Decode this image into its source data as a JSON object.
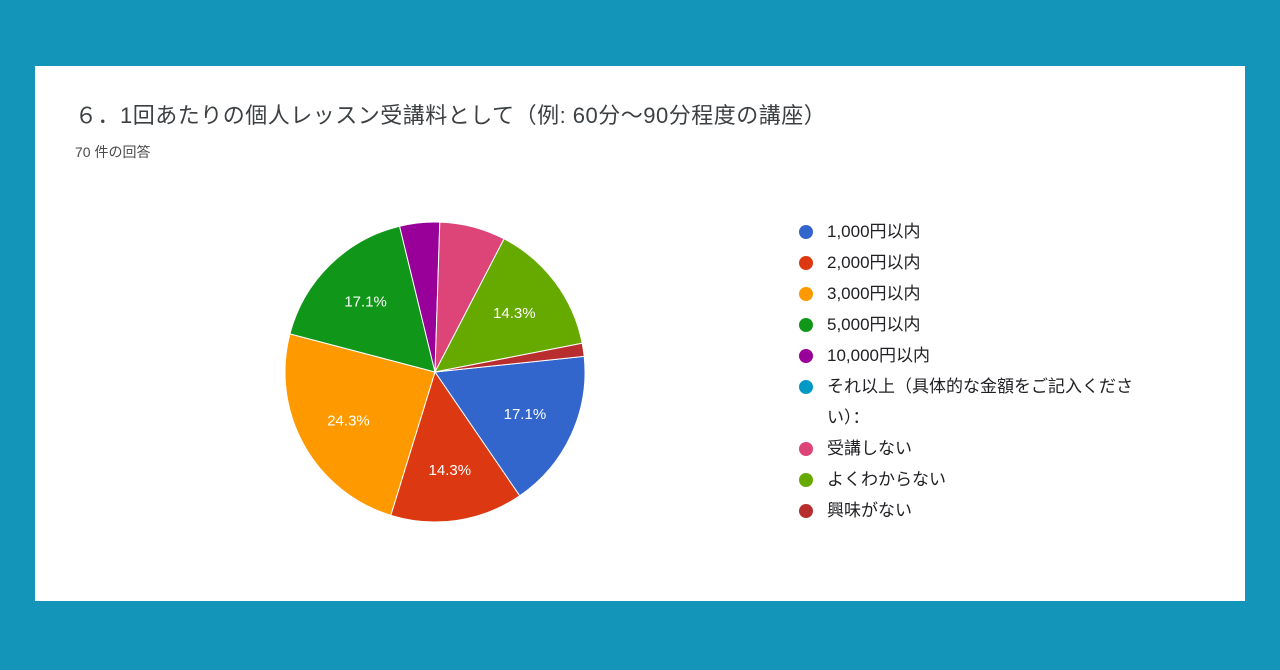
{
  "page": {
    "background_color": "#1295b9",
    "card_background": "#ffffff"
  },
  "chart_card": {
    "title": "６．1回あたりの個人レッスン受講料として（例: 60分〜90分程度の講座）",
    "response_count": "70 件の回答"
  },
  "chart_data": {
    "type": "pie",
    "title": "６．1回あたりの個人レッスン受講料として（例: 60分〜90分程度の講座）",
    "subtitle": "70 件の回答",
    "total_responses": 70,
    "legend_position": "right",
    "start_angle_deg": 84,
    "categories": [
      "1,000円以内",
      "2,000円以内",
      "3,000円以内",
      "5,000円以内",
      "10,000円以内",
      "それ以上（具体的な金額をご記入ください）：",
      "受講しない",
      "よくわからない",
      "興味がない"
    ],
    "values_percent": [
      17.1,
      14.3,
      24.3,
      17.1,
      4.3,
      0,
      7.1,
      14.3,
      1.4
    ],
    "visible_slice_labels": [
      "17.1%",
      "14.3%",
      "24.3%",
      "17.1%",
      "",
      "",
      "",
      "14.3%",
      ""
    ],
    "colors": [
      "#3366CC",
      "#DC3912",
      "#FF9900",
      "#109618",
      "#990099",
      "#0099C6",
      "#DD4477",
      "#66AA00",
      "#B82E2E"
    ]
  }
}
